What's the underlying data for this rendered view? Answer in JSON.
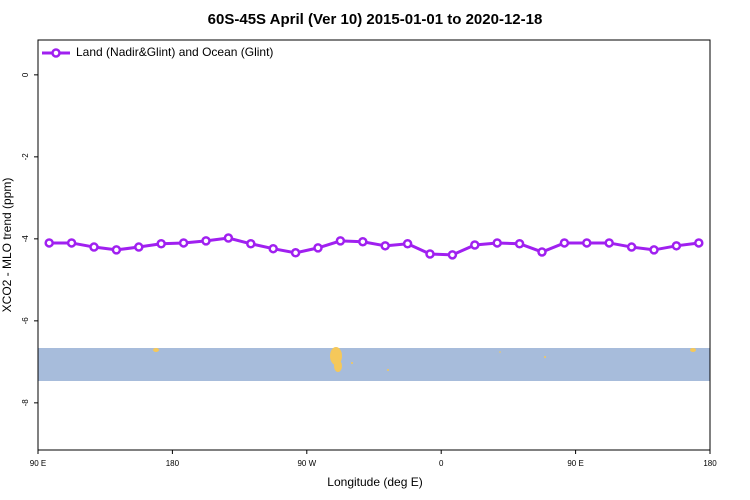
{
  "chart_data": {
    "type": "line",
    "title": "60S-45S April (Ver 10)   2015-01-01 to 2020-12-18",
    "xlabel": "Longitude (deg E)",
    "ylabel": "XCO2 - MLO trend (ppm)",
    "x": [
      97.5,
      112.5,
      127.5,
      142.5,
      157.5,
      172.5,
      187.5,
      202.5,
      217.5,
      232.5,
      247.5,
      262.5,
      277.5,
      292.5,
      307.5,
      322.5,
      337.5,
      352.5,
      367.5,
      382.5,
      397.5,
      412.5,
      427.5,
      442.5,
      457.5,
      472.5,
      487.5,
      502.5,
      517.5,
      532.5
    ],
    "series": [
      {
        "name": "Land (Nadir&Glint) and Ocean (Glint)",
        "color": "#a020f0",
        "values": [
          -4.1,
          -4.1,
          -4.2,
          -4.27,
          -4.2,
          -4.12,
          -4.1,
          -4.05,
          -3.98,
          -4.12,
          -4.24,
          -4.34,
          -4.22,
          -4.05,
          -4.07,
          -4.17,
          -4.12,
          -4.37,
          -4.39,
          -4.15,
          -4.1,
          -4.12,
          -4.32,
          -4.1,
          -4.1,
          -4.1,
          -4.2,
          -4.27,
          -4.17,
          -4.1
        ]
      }
    ],
    "xlim": [
      90,
      540
    ],
    "xticks": [
      {
        "value": 90,
        "label": "90 E"
      },
      {
        "value": 180,
        "label": "180"
      },
      {
        "value": 270,
        "label": "90 W"
      },
      {
        "value": 360,
        "label": "0"
      },
      {
        "value": 450,
        "label": "90 E"
      },
      {
        "value": 540,
        "label": "180"
      }
    ],
    "ylim": [
      -9.15,
      0.85
    ],
    "yticks": [
      0,
      -2,
      -4,
      -6,
      -8
    ],
    "legend": "top-left"
  }
}
